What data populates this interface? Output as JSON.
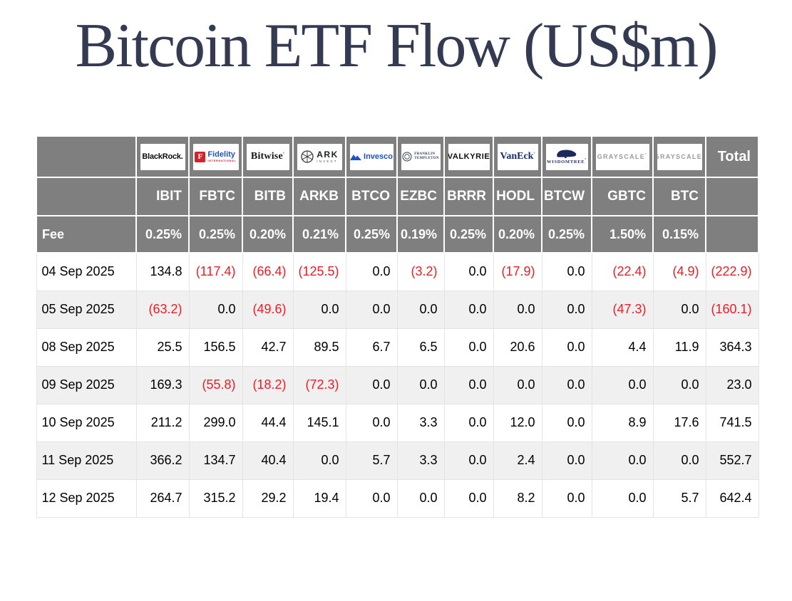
{
  "page": {
    "title": "Bitcoin ETF Flow (US$m)"
  },
  "colors": {
    "header_bg": "#7f7f7f",
    "header_text": "#ffffff",
    "row_alt": "#f0f0f0",
    "negative_red": "#ed1c24",
    "title_navy": "#333a52",
    "body_border": "#e4e4e4"
  },
  "chart_data": {
    "type": "table",
    "title": "Bitcoin ETF Flow (US$m)",
    "corner_label": "",
    "fee_row_label": "Fee",
    "total_column_label": "Total",
    "columns": [
      {
        "issuer": "BlackRock",
        "ticker": "IBIT",
        "fee": "0.25%",
        "logo": {
          "type": "blackrock",
          "text": "BlackRock."
        }
      },
      {
        "issuer": "Fidelity International",
        "ticker": "FBTC",
        "fee": "0.25%",
        "logo": {
          "type": "fidelity",
          "mark": "F",
          "text": "Fidelity",
          "sub": "INTERNATIONAL"
        }
      },
      {
        "issuer": "Bitwise",
        "ticker": "BITB",
        "fee": "0.20%",
        "logo": {
          "type": "bitwise",
          "text": "Bitwise"
        }
      },
      {
        "issuer": "ARK Invest",
        "ticker": "ARKB",
        "fee": "0.21%",
        "logo": {
          "type": "ark",
          "text": "ARK",
          "sub": "INVEST"
        }
      },
      {
        "issuer": "Invesco",
        "ticker": "BTCO",
        "fee": "0.25%",
        "logo": {
          "type": "invesco",
          "text": "Invesco"
        }
      },
      {
        "issuer": "Franklin Templeton",
        "ticker": "EZBC",
        "fee": "0.19%",
        "logo": {
          "type": "franklin",
          "text": "FRANKLIN",
          "sub": "TEMPLETON"
        }
      },
      {
        "issuer": "Valkyrie",
        "ticker": "BRRR",
        "fee": "0.25%",
        "logo": {
          "type": "valkyrie",
          "text": "VALKYRIE"
        }
      },
      {
        "issuer": "VanEck",
        "ticker": "HODL",
        "fee": "0.20%",
        "logo": {
          "type": "vaneck",
          "text": "VanEck"
        }
      },
      {
        "issuer": "WisdomTree",
        "ticker": "BTCW",
        "fee": "0.25%",
        "logo": {
          "type": "wisdomtree",
          "text": "WISDOMTREE"
        }
      },
      {
        "issuer": "Grayscale",
        "ticker": "GBTC",
        "fee": "1.50%",
        "logo": {
          "type": "grayscale",
          "text": "GRAYSCALE"
        }
      },
      {
        "issuer": "Grayscale",
        "ticker": "BTC",
        "fee": "0.15%",
        "logo": {
          "type": "grayscale",
          "text": "GRAYSCALE"
        }
      }
    ],
    "rows": [
      {
        "date": "04 Sep 2025",
        "values": [
          "134.8",
          "(117.4)",
          "(66.4)",
          "(125.5)",
          "0.0",
          "(3.2)",
          "0.0",
          "(17.9)",
          "0.0",
          "(22.4)",
          "(4.9)"
        ],
        "total": "(222.9)"
      },
      {
        "date": "05 Sep 2025",
        "values": [
          "(63.2)",
          "0.0",
          "(49.6)",
          "0.0",
          "0.0",
          "0.0",
          "0.0",
          "0.0",
          "0.0",
          "(47.3)",
          "0.0"
        ],
        "total": "(160.1)"
      },
      {
        "date": "08 Sep 2025",
        "values": [
          "25.5",
          "156.5",
          "42.7",
          "89.5",
          "6.7",
          "6.5",
          "0.0",
          "20.6",
          "0.0",
          "4.4",
          "11.9"
        ],
        "total": "364.3"
      },
      {
        "date": "09 Sep 2025",
        "values": [
          "169.3",
          "(55.8)",
          "(18.2)",
          "(72.3)",
          "0.0",
          "0.0",
          "0.0",
          "0.0",
          "0.0",
          "0.0",
          "0.0"
        ],
        "total": "23.0"
      },
      {
        "date": "10 Sep 2025",
        "values": [
          "211.2",
          "299.0",
          "44.4",
          "145.1",
          "0.0",
          "3.3",
          "0.0",
          "12.0",
          "0.0",
          "8.9",
          "17.6"
        ],
        "total": "741.5"
      },
      {
        "date": "11 Sep 2025",
        "values": [
          "366.2",
          "134.7",
          "40.4",
          "0.0",
          "5.7",
          "3.3",
          "0.0",
          "2.4",
          "0.0",
          "0.0",
          "0.0"
        ],
        "total": "552.7"
      },
      {
        "date": "12 Sep 2025",
        "values": [
          "264.7",
          "315.2",
          "29.2",
          "19.4",
          "0.0",
          "0.0",
          "0.0",
          "8.2",
          "0.0",
          "0.0",
          "5.7"
        ],
        "total": "642.4"
      }
    ]
  }
}
